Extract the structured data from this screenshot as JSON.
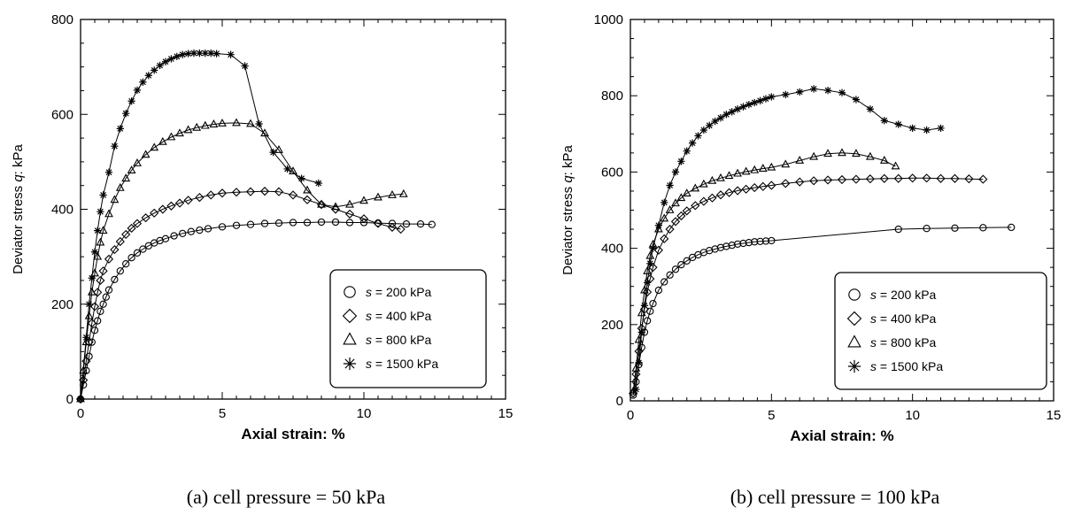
{
  "chart_data": [
    {
      "type": "line",
      "caption": "(a) cell pressure = 50 kPa",
      "xlabel": "Axial strain: %",
      "ylabel_prefix": "Deviator stress ",
      "ylabel_var": "q",
      "ylabel_suffix": ": kPa",
      "xlim": [
        0,
        15
      ],
      "ylim": [
        0,
        800
      ],
      "xticks": [
        0,
        5,
        10,
        15
      ],
      "yticks": [
        0,
        200,
        400,
        600,
        800
      ],
      "grid": false,
      "legend_position": "bottom-right",
      "series": [
        {
          "name": "s = 200 kPa",
          "var": "s",
          "rest": " = 200 kPa",
          "marker": "circle",
          "x": [
            0,
            0.1,
            0.2,
            0.3,
            0.4,
            0.5,
            0.6,
            0.7,
            0.8,
            0.9,
            1.0,
            1.2,
            1.4,
            1.6,
            1.8,
            2.0,
            2.2,
            2.4,
            2.6,
            2.8,
            3.0,
            3.3,
            3.6,
            3.9,
            4.2,
            4.5,
            5.0,
            5.5,
            6.0,
            6.5,
            7.0,
            7.5,
            8.0,
            8.5,
            9.0,
            9.5,
            10.0,
            10.5,
            11.0,
            11.5,
            12.0,
            12.4
          ],
          "y": [
            0,
            30,
            60,
            90,
            120,
            145,
            165,
            185,
            200,
            215,
            230,
            252,
            270,
            285,
            298,
            308,
            316,
            323,
            329,
            334,
            338,
            344,
            349,
            353,
            356,
            359,
            363,
            366,
            368,
            370,
            371,
            372,
            372,
            373,
            373,
            372,
            372,
            371,
            370,
            369,
            369,
            368
          ]
        },
        {
          "name": "s = 400 kPa",
          "var": "s",
          "rest": " = 400 kPa",
          "marker": "diamond",
          "x": [
            0,
            0.1,
            0.2,
            0.3,
            0.4,
            0.5,
            0.6,
            0.7,
            0.8,
            1.0,
            1.2,
            1.4,
            1.6,
            1.8,
            2.0,
            2.3,
            2.6,
            2.9,
            3.2,
            3.5,
            3.8,
            4.2,
            4.6,
            5.0,
            5.5,
            6.0,
            6.5,
            7.0,
            7.5,
            8.0,
            8.5,
            9.0,
            9.5,
            10.0,
            10.5,
            11.0,
            11.3
          ],
          "y": [
            0,
            40,
            80,
            120,
            160,
            195,
            225,
            250,
            270,
            295,
            315,
            332,
            347,
            360,
            370,
            382,
            392,
            400,
            407,
            413,
            419,
            425,
            430,
            434,
            436,
            437,
            438,
            437,
            430,
            420,
            410,
            400,
            390,
            380,
            370,
            362,
            358
          ]
        },
        {
          "name": "s = 800 kPa",
          "var": "s",
          "rest": " = 800 kPa",
          "marker": "triangle",
          "x": [
            0,
            0.1,
            0.2,
            0.3,
            0.4,
            0.5,
            0.6,
            0.7,
            0.8,
            1.0,
            1.2,
            1.4,
            1.6,
            1.8,
            2.0,
            2.3,
            2.6,
            2.9,
            3.2,
            3.5,
            3.8,
            4.1,
            4.4,
            4.7,
            5.0,
            5.5,
            6.0,
            6.5,
            7.0,
            7.5,
            8.0,
            8.5,
            9.0,
            9.5,
            10.0,
            10.5,
            11.0,
            11.4
          ],
          "y": [
            0,
            60,
            120,
            175,
            225,
            265,
            300,
            330,
            355,
            390,
            420,
            445,
            465,
            482,
            497,
            515,
            530,
            542,
            552,
            560,
            567,
            572,
            576,
            579,
            581,
            582,
            580,
            560,
            525,
            480,
            440,
            410,
            405,
            410,
            418,
            425,
            430,
            432
          ]
        },
        {
          "name": "s = 1500 kPa",
          "var": "s",
          "rest": " = 1500 kPa",
          "marker": "asterisk",
          "x": [
            0,
            0.2,
            0.3,
            0.4,
            0.5,
            0.6,
            0.7,
            0.8,
            1.0,
            1.2,
            1.4,
            1.6,
            1.8,
            2.0,
            2.2,
            2.4,
            2.6,
            2.8,
            3.0,
            3.2,
            3.4,
            3.6,
            3.8,
            4.0,
            4.2,
            4.4,
            4.6,
            4.8,
            5.3,
            5.8,
            6.3,
            6.8,
            7.3,
            7.8,
            8.4
          ],
          "y": [
            0,
            130,
            200,
            255,
            310,
            355,
            395,
            430,
            478,
            533,
            570,
            602,
            628,
            651,
            668,
            682,
            693,
            703,
            711,
            717,
            722,
            726,
            728,
            729,
            729,
            729,
            729,
            728,
            726,
            702,
            580,
            520,
            485,
            465,
            455
          ]
        }
      ]
    },
    {
      "type": "line",
      "caption": "(b) cell pressure = 100 kPa",
      "xlabel": "Axial strain: %",
      "ylabel_prefix": "Deviator stress ",
      "ylabel_var": "q",
      "ylabel_suffix": ": kPa",
      "xlim": [
        0,
        15
      ],
      "ylim": [
        0,
        1000
      ],
      "xticks": [
        0,
        5,
        10,
        15
      ],
      "yticks": [
        0,
        200,
        400,
        600,
        800,
        1000
      ],
      "grid": false,
      "legend_position": "bottom-right",
      "series": [
        {
          "name": "s = 200 kPa",
          "var": "s",
          "rest": " = 200 kPa",
          "marker": "circle",
          "x": [
            0.1,
            0.2,
            0.3,
            0.4,
            0.5,
            0.6,
            0.7,
            0.8,
            1.0,
            1.2,
            1.4,
            1.6,
            1.8,
            2.0,
            2.2,
            2.4,
            2.6,
            2.8,
            3.0,
            3.2,
            3.4,
            3.6,
            3.8,
            4.0,
            4.2,
            4.4,
            4.6,
            4.8,
            5.0,
            9.5,
            10.5,
            11.5,
            12.5,
            13.5
          ],
          "y": [
            15,
            50,
            95,
            140,
            180,
            210,
            235,
            255,
            290,
            312,
            330,
            345,
            357,
            367,
            376,
            383,
            389,
            394,
            398,
            402,
            405,
            408,
            411,
            413,
            415,
            417,
            418,
            419,
            420,
            450,
            452,
            453,
            454,
            455
          ]
        },
        {
          "name": "s = 400 kPa",
          "var": "s",
          "rest": " = 400 kPa",
          "marker": "diamond",
          "x": [
            0.1,
            0.2,
            0.3,
            0.4,
            0.5,
            0.6,
            0.7,
            0.8,
            1.0,
            1.2,
            1.4,
            1.6,
            1.8,
            2.0,
            2.3,
            2.6,
            2.9,
            3.2,
            3.5,
            3.8,
            4.1,
            4.4,
            4.7,
            5.0,
            5.5,
            6.0,
            6.5,
            7.0,
            7.5,
            8.0,
            8.5,
            9.0,
            9.5,
            10.0,
            10.5,
            11.0,
            11.5,
            12.0,
            12.5
          ],
          "y": [
            20,
            70,
            130,
            190,
            240,
            285,
            320,
            350,
            395,
            425,
            450,
            470,
            485,
            498,
            512,
            523,
            532,
            540,
            546,
            551,
            555,
            559,
            562,
            565,
            570,
            574,
            577,
            579,
            580,
            581,
            582,
            583,
            583,
            584,
            584,
            583,
            583,
            582,
            581
          ]
        },
        {
          "name": "s = 800 kPa",
          "var": "s",
          "rest": " = 800 kPa",
          "marker": "triangle",
          "x": [
            0.1,
            0.2,
            0.3,
            0.4,
            0.5,
            0.6,
            0.7,
            0.8,
            1.0,
            1.2,
            1.4,
            1.6,
            1.8,
            2.0,
            2.3,
            2.6,
            2.9,
            3.2,
            3.5,
            3.8,
            4.1,
            4.4,
            4.7,
            5.0,
            5.5,
            6.0,
            6.5,
            7.0,
            7.5,
            8.0,
            8.5,
            9.0,
            9.4
          ],
          "y": [
            25,
            85,
            160,
            230,
            290,
            340,
            380,
            410,
            450,
            478,
            500,
            518,
            532,
            544,
            557,
            568,
            577,
            584,
            590,
            596,
            601,
            605,
            609,
            612,
            620,
            630,
            640,
            648,
            650,
            648,
            640,
            630,
            615
          ]
        },
        {
          "name": "s = 1500 kPa",
          "var": "s",
          "rest": " = 1500 kPa",
          "marker": "asterisk",
          "x": [
            0.2,
            0.3,
            0.4,
            0.5,
            0.6,
            0.7,
            0.8,
            1.0,
            1.2,
            1.4,
            1.6,
            1.8,
            2.0,
            2.2,
            2.4,
            2.6,
            2.8,
            3.0,
            3.2,
            3.4,
            3.6,
            3.8,
            4.0,
            4.2,
            4.4,
            4.6,
            4.8,
            5.0,
            5.5,
            6.0,
            6.5,
            7.0,
            7.5,
            8.0,
            8.5,
            9.0,
            9.5,
            10.0,
            10.5,
            11.0
          ],
          "y": [
            30,
            100,
            180,
            250,
            310,
            360,
            400,
            460,
            520,
            565,
            600,
            628,
            655,
            676,
            695,
            710,
            722,
            733,
            742,
            751,
            758,
            765,
            771,
            777,
            782,
            787,
            792,
            797,
            803,
            810,
            818,
            814,
            808,
            790,
            765,
            735,
            725,
            715,
            710,
            715
          ]
        }
      ]
    }
  ]
}
